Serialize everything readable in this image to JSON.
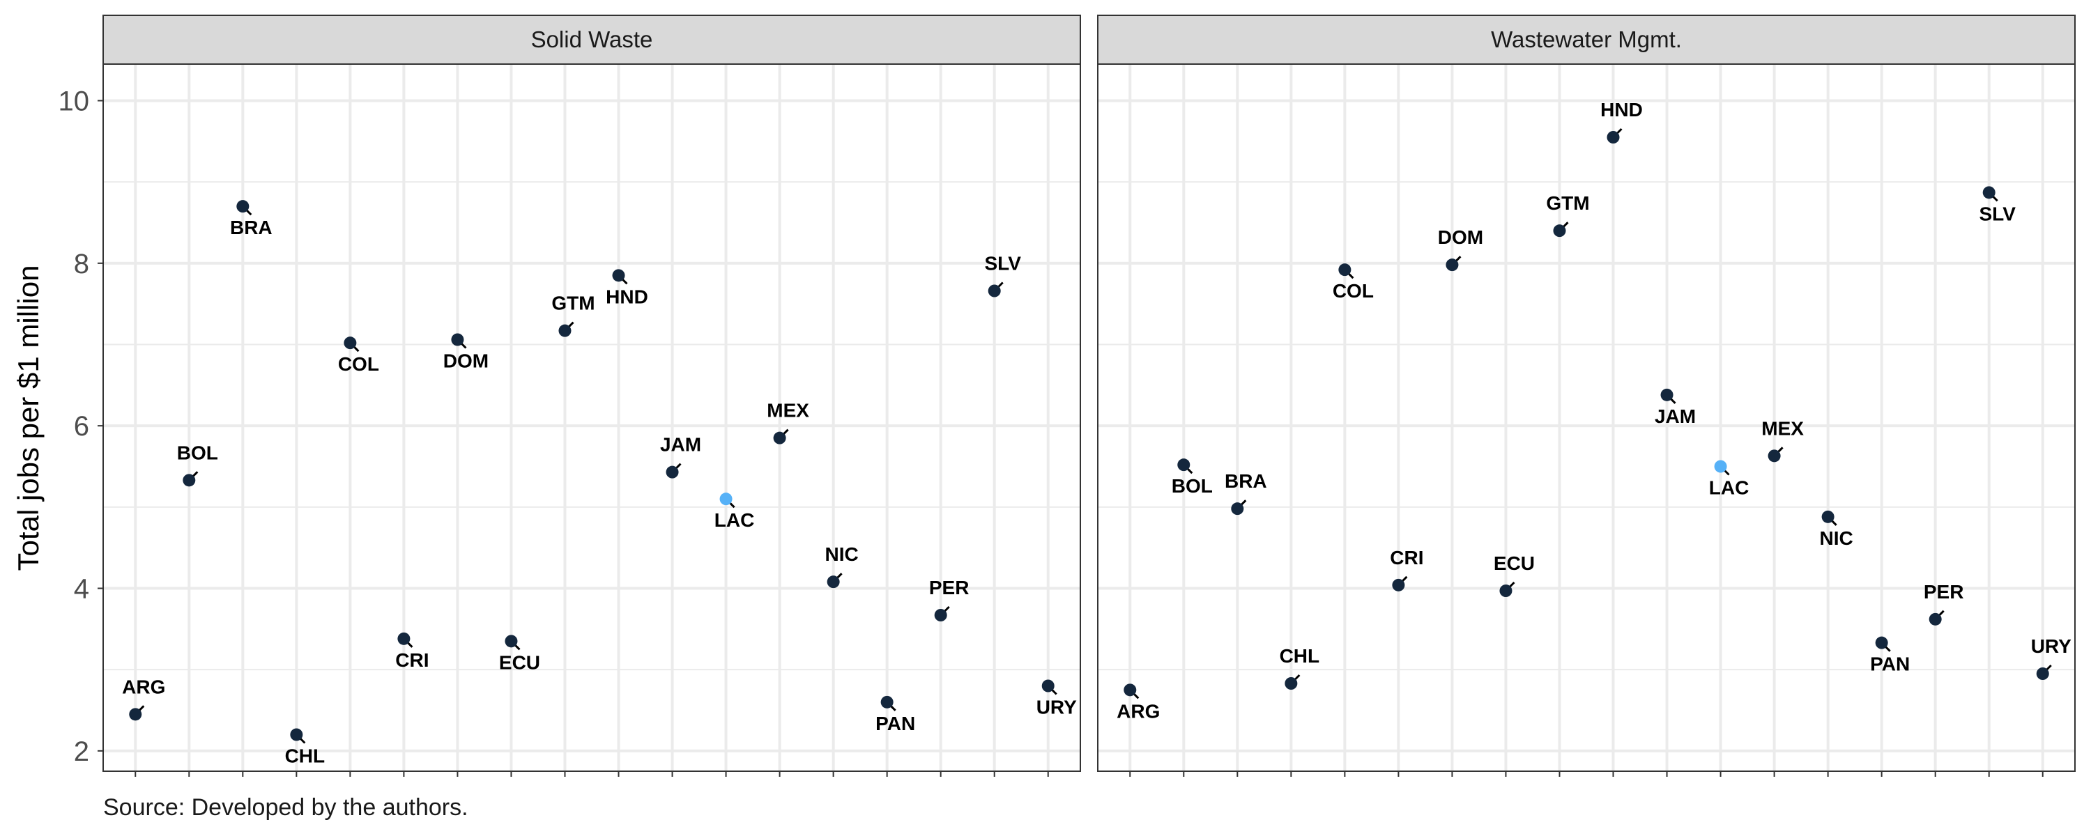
{
  "chart_data": {
    "type": "scatter",
    "ylabel": "Total jobs per $1 million",
    "caption": "Source: Developed by the authors.",
    "ylim": [
      1.75,
      10.45
    ],
    "yticks": [
      2,
      4,
      6,
      8,
      10
    ],
    "grid": true,
    "x_categories": [
      "ARG",
      "BOL",
      "BRA",
      "CHL",
      "COL",
      "CRI",
      "DOM",
      "ECU",
      "GTM",
      "HND",
      "JAM",
      "LAC",
      "MEX",
      "NIC",
      "PAN",
      "PER",
      "SLV",
      "URY"
    ],
    "colors": {
      "point": "#14273d",
      "highlight": "#56b1f7",
      "strip_bg": "#d9d9d9",
      "grid": "#ebebeb",
      "border": "#333333"
    },
    "highlight": "LAC",
    "panels": [
      {
        "title": "Solid Waste",
        "points": [
          {
            "label": "ARG",
            "y": 2.45,
            "label_pos": "above"
          },
          {
            "label": "BOL",
            "y": 5.33,
            "label_pos": "above"
          },
          {
            "label": "BRA",
            "y": 8.7,
            "label_pos": "below"
          },
          {
            "label": "CHL",
            "y": 2.2,
            "label_pos": "below"
          },
          {
            "label": "COL",
            "y": 7.02,
            "label_pos": "below"
          },
          {
            "label": "CRI",
            "y": 3.38,
            "label_pos": "below"
          },
          {
            "label": "DOM",
            "y": 7.06,
            "label_pos": "below"
          },
          {
            "label": "ECU",
            "y": 3.35,
            "label_pos": "below"
          },
          {
            "label": "GTM",
            "y": 7.17,
            "label_pos": "above"
          },
          {
            "label": "HND",
            "y": 7.85,
            "label_pos": "below"
          },
          {
            "label": "JAM",
            "y": 5.43,
            "label_pos": "above"
          },
          {
            "label": "LAC",
            "y": 5.1,
            "label_pos": "below"
          },
          {
            "label": "MEX",
            "y": 5.85,
            "label_pos": "above"
          },
          {
            "label": "NIC",
            "y": 4.08,
            "label_pos": "above"
          },
          {
            "label": "PAN",
            "y": 2.6,
            "label_pos": "below"
          },
          {
            "label": "PER",
            "y": 3.67,
            "label_pos": "above"
          },
          {
            "label": "SLV",
            "y": 7.66,
            "label_pos": "above"
          },
          {
            "label": "URY",
            "y": 2.8,
            "label_pos": "below"
          }
        ]
      },
      {
        "title": "Wastewater Mgmt.",
        "points": [
          {
            "label": "ARG",
            "y": 2.75,
            "label_pos": "below"
          },
          {
            "label": "BOL",
            "y": 5.52,
            "label_pos": "below"
          },
          {
            "label": "BRA",
            "y": 4.98,
            "label_pos": "above"
          },
          {
            "label": "CHL",
            "y": 2.83,
            "label_pos": "above"
          },
          {
            "label": "COL",
            "y": 7.92,
            "label_pos": "below"
          },
          {
            "label": "CRI",
            "y": 4.04,
            "label_pos": "above"
          },
          {
            "label": "DOM",
            "y": 7.98,
            "label_pos": "above"
          },
          {
            "label": "ECU",
            "y": 3.97,
            "label_pos": "above"
          },
          {
            "label": "GTM",
            "y": 8.4,
            "label_pos": "above"
          },
          {
            "label": "HND",
            "y": 9.55,
            "label_pos": "above"
          },
          {
            "label": "JAM",
            "y": 6.38,
            "label_pos": "below"
          },
          {
            "label": "LAC",
            "y": 5.5,
            "label_pos": "below"
          },
          {
            "label": "MEX",
            "y": 5.63,
            "label_pos": "above"
          },
          {
            "label": "NIC",
            "y": 4.88,
            "label_pos": "below"
          },
          {
            "label": "PAN",
            "y": 3.33,
            "label_pos": "below"
          },
          {
            "label": "PER",
            "y": 3.62,
            "label_pos": "above"
          },
          {
            "label": "SLV",
            "y": 8.87,
            "label_pos": "below"
          },
          {
            "label": "URY",
            "y": 2.95,
            "label_pos": "above"
          }
        ]
      }
    ]
  }
}
